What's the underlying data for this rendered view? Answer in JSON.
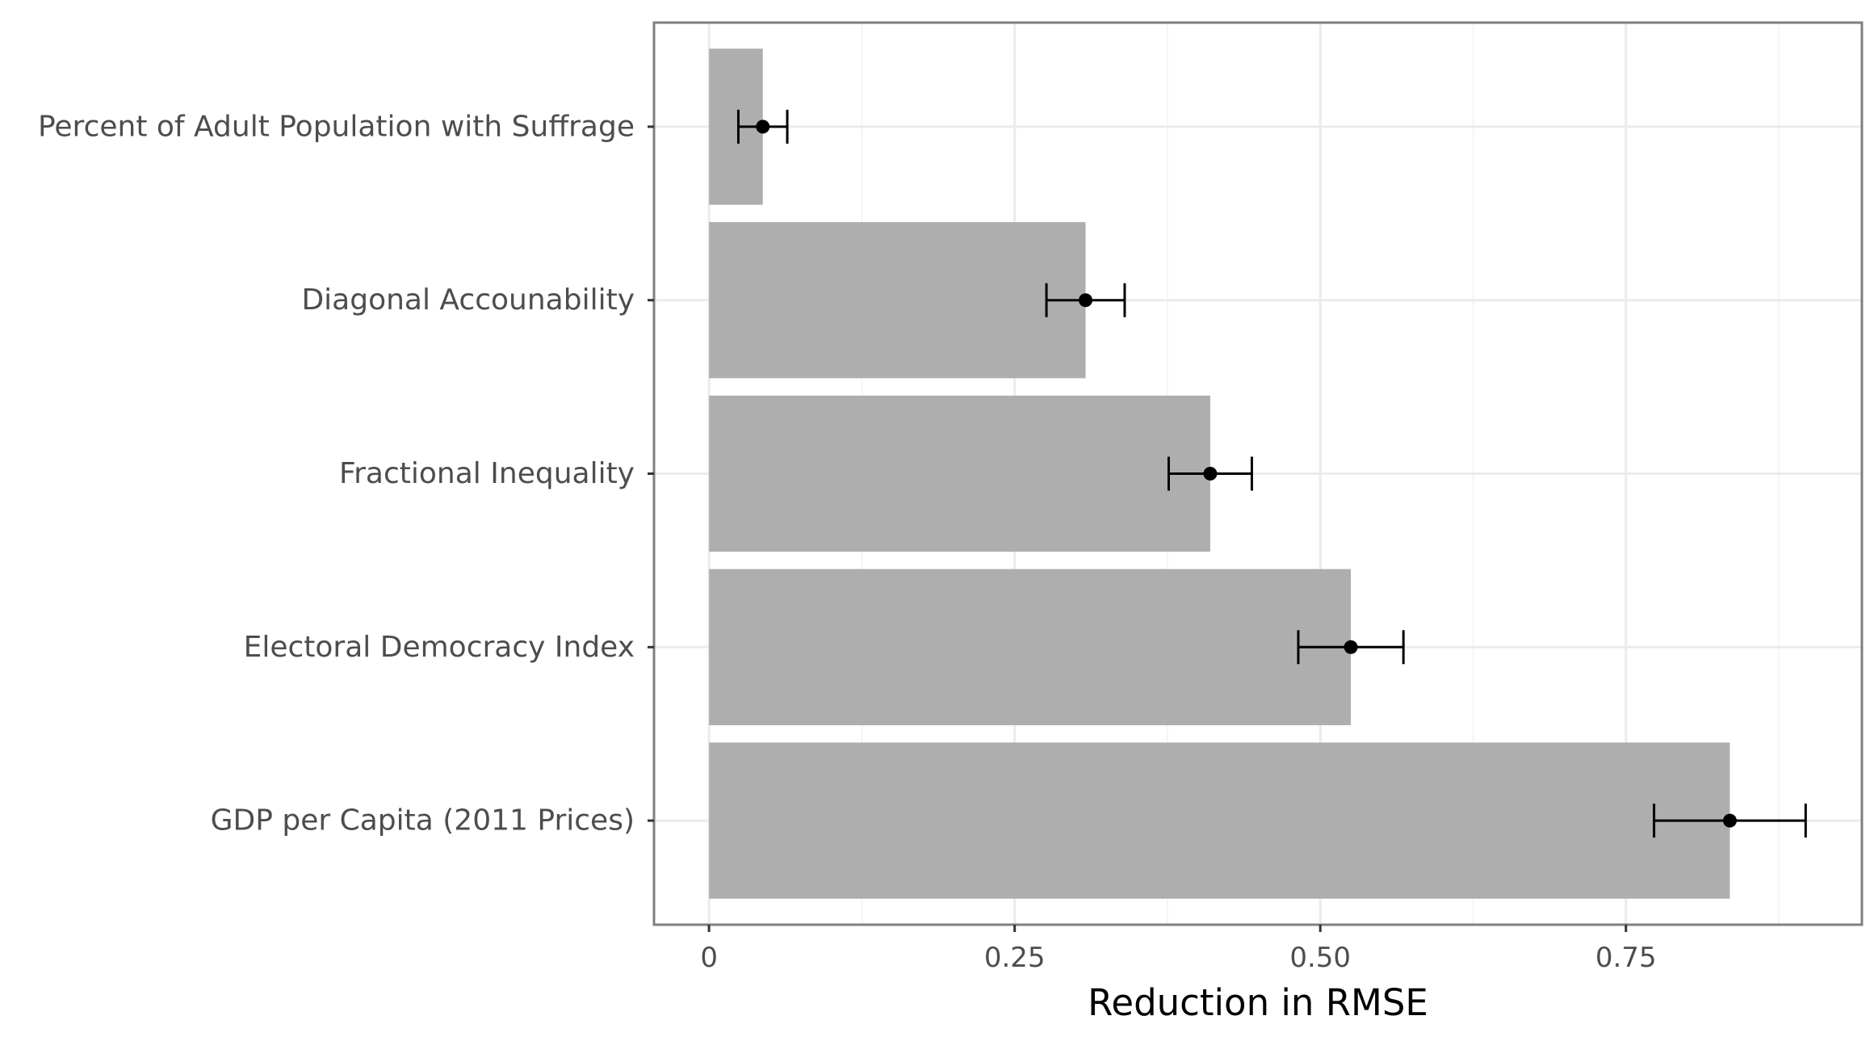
{
  "chart_data": {
    "type": "bar",
    "orientation": "horizontal",
    "title": "",
    "xlabel": "Reduction in RMSE",
    "ylabel": "",
    "categories": [
      "Percent of Adult Population with Suffrage",
      "Diagonal Accounability",
      "Fractional Inequality",
      "Electoral Democracy Index",
      "GDP per Capita (2011 Prices)"
    ],
    "values": [
      0.044,
      0.308,
      0.41,
      0.525,
      0.835
    ],
    "error_low": [
      0.024,
      0.276,
      0.376,
      0.482,
      0.773
    ],
    "error_high": [
      0.064,
      0.34,
      0.444,
      0.568,
      0.897
    ],
    "point_estimates": [
      0.044,
      0.308,
      0.41,
      0.525,
      0.835
    ],
    "xlim": [
      -0.045,
      0.943
    ],
    "xticks": [
      0,
      0.25,
      0.5,
      0.75
    ],
    "xtick_labels": [
      "0",
      "0.25",
      "0.50",
      "0.75"
    ],
    "grid": true,
    "legend": "none",
    "colors": {
      "bar": "#ababab",
      "error": "#000000",
      "grid_major": "#ebebeb",
      "grid_minor": "#f5f5f5",
      "panel_border": "#7f7f7f",
      "label": "#4d4d4d"
    }
  }
}
